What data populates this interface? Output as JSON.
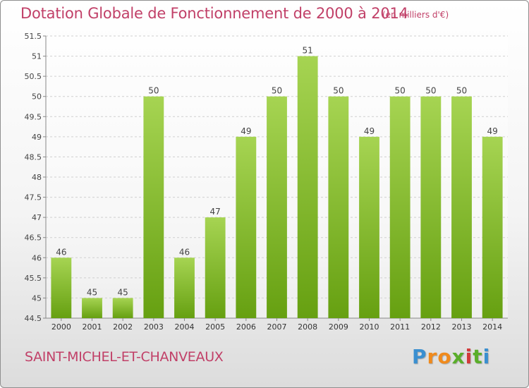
{
  "title": "Dotation Globale de Fonctionnement de 2000 à 2014",
  "unit_label": "(en milliers d'€)",
  "commune": "SAINT-MICHEL-ET-CHANVEAUX",
  "logo": {
    "letters": [
      "P",
      "r",
      "o",
      "x",
      "i",
      "t",
      "i"
    ],
    "colors": [
      "#3a8fd0",
      "#f08a1c",
      "#f08a1c",
      "#5aae2a",
      "#d23a3a",
      "#5aae2a",
      "#3a8fd0"
    ]
  },
  "colors": {
    "bar_top": "#a6d452",
    "bar_bottom": "#66a011",
    "accent": "#c14068"
  },
  "chart_data": {
    "type": "bar",
    "categories": [
      "2000",
      "2001",
      "2002",
      "2003",
      "2004",
      "2005",
      "2006",
      "2007",
      "2008",
      "2009",
      "2010",
      "2011",
      "2012",
      "2013",
      "2014"
    ],
    "values": [
      46,
      45,
      45,
      50,
      46,
      47,
      49,
      50,
      51,
      50,
      49,
      50,
      50,
      50,
      49
    ],
    "data_labels": [
      "46",
      "45",
      "45",
      "50",
      "46",
      "47",
      "49",
      "50",
      "51",
      "50",
      "49",
      "50",
      "50",
      "50",
      "49"
    ],
    "ylim": [
      44.5,
      51.5
    ],
    "yticks": [
      "44.5",
      "45",
      "45.5",
      "46",
      "46.5",
      "47",
      "47.5",
      "48",
      "48.5",
      "49",
      "49.5",
      "50",
      "50.5",
      "51",
      "51.5"
    ],
    "grid": true,
    "xlabel": "",
    "ylabel": ""
  }
}
